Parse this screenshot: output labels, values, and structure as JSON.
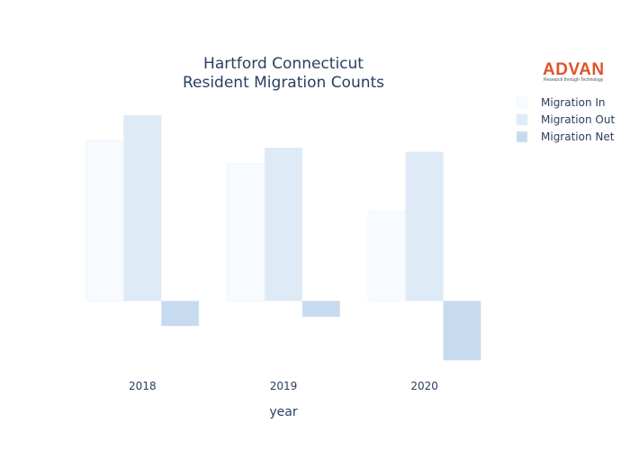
{
  "chart_data": {
    "type": "bar",
    "title": [
      "Hartford Connecticut",
      "Resident Migration Counts"
    ],
    "xlabel": "year",
    "ylabel": "",
    "categories": [
      "2018",
      "2019",
      "2020"
    ],
    "series": [
      {
        "name": "Migration In",
        "color": "#f7fbff",
        "values": [
          1920,
          1640,
          1070
        ]
      },
      {
        "name": "Migration Out",
        "color": "#deebf7",
        "values": [
          2220,
          1830,
          1780
        ]
      },
      {
        "name": "Migration Net",
        "color": "#c6dbef",
        "values": [
          -300,
          -190,
          -710
        ]
      }
    ],
    "ylim": [
      -760,
      2360
    ],
    "grid": false,
    "yticks_visible": false,
    "legend_position": "top-right"
  },
  "logo": {
    "text": "ADVAN",
    "tagline": "Research through Technology"
  }
}
